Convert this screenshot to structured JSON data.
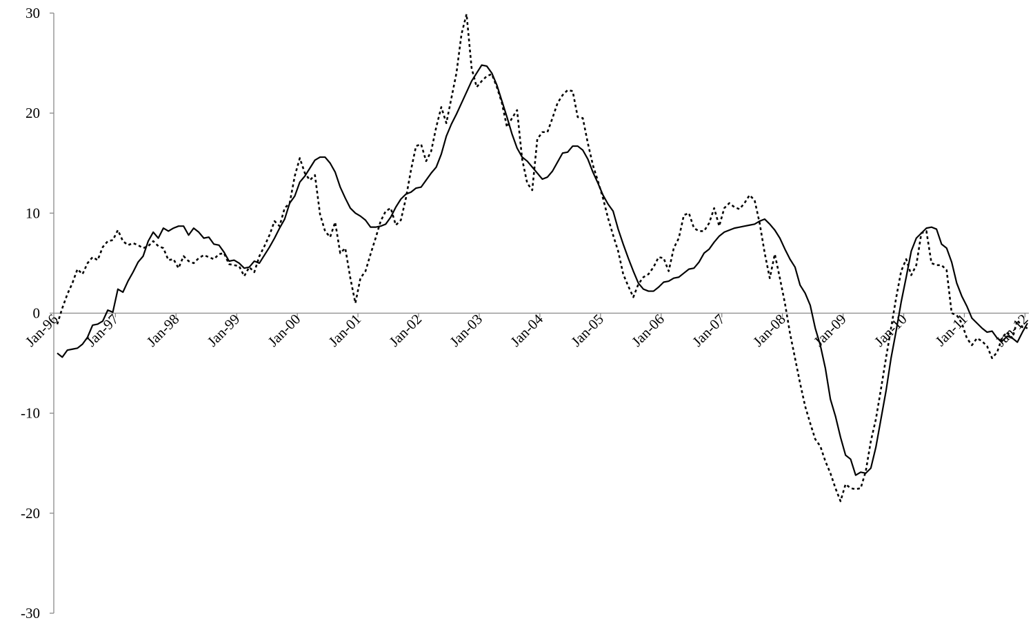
{
  "chart_data": {
    "type": "line",
    "categories": [
      "Jan-96",
      null,
      null,
      null,
      null,
      null,
      null,
      null,
      null,
      null,
      null,
      null,
      "Jan-97",
      null,
      null,
      null,
      null,
      null,
      null,
      null,
      null,
      null,
      null,
      null,
      "Jan-98",
      null,
      null,
      null,
      null,
      null,
      null,
      null,
      null,
      null,
      null,
      null,
      "Jan-99",
      null,
      null,
      null,
      null,
      null,
      null,
      null,
      null,
      null,
      null,
      null,
      "Jan-00",
      null,
      null,
      null,
      null,
      null,
      null,
      null,
      null,
      null,
      null,
      null,
      "Jan-01",
      null,
      null,
      null,
      null,
      null,
      null,
      null,
      null,
      null,
      null,
      null,
      "Jan-02",
      null,
      null,
      null,
      null,
      null,
      null,
      null,
      null,
      null,
      null,
      null,
      "Jan-03",
      null,
      null,
      null,
      null,
      null,
      null,
      null,
      null,
      null,
      null,
      null,
      "Jan-04",
      null,
      null,
      null,
      null,
      null,
      null,
      null,
      null,
      null,
      null,
      null,
      "Jan-05",
      null,
      null,
      null,
      null,
      null,
      null,
      null,
      null,
      null,
      null,
      null,
      "Jan-06",
      null,
      null,
      null,
      null,
      null,
      null,
      null,
      null,
      null,
      null,
      null,
      "Jan-07",
      null,
      null,
      null,
      null,
      null,
      null,
      null,
      null,
      null,
      null,
      null,
      "Jan-08",
      null,
      null,
      null,
      null,
      null,
      null,
      null,
      null,
      null,
      null,
      null,
      "Jan-09",
      null,
      null,
      null,
      null,
      null,
      null,
      null,
      null,
      null,
      null,
      null,
      "Jan-10",
      null,
      null,
      null,
      null,
      null,
      null,
      null,
      null,
      null,
      null,
      null,
      "Jan-11",
      null,
      null,
      null,
      null,
      null,
      null,
      null,
      null,
      null,
      null,
      null,
      "Jan-12"
    ],
    "series": [
      {
        "color": "#000000",
        "style": "solid",
        "values": [
          -4.0,
          -4.4,
          -3.7,
          -3.6,
          -3.5,
          -3.1,
          -2.4,
          -1.2,
          -1.1,
          -0.8,
          0.3,
          0.1,
          2.4,
          2.1,
          3.2,
          4.1,
          5.1,
          5.7,
          7.2,
          8.1,
          7.5,
          8.5,
          8.2,
          8.5,
          8.7,
          8.7,
          7.8,
          8.5,
          8.1,
          7.5,
          7.6,
          6.9,
          6.8,
          6.1,
          5.2,
          5.3,
          5.0,
          4.5,
          4.6,
          5.2,
          5.0,
          5.8,
          6.6,
          7.5,
          8.5,
          9.4,
          11.0,
          11.7,
          13.1,
          13.7,
          14.5,
          15.3,
          15.6,
          15.6,
          15.0,
          14.1,
          12.6,
          11.5,
          10.5,
          10.0,
          9.7,
          9.3,
          8.6,
          8.6,
          8.7,
          8.9,
          9.6,
          10.6,
          11.4,
          11.9,
          12.1,
          12.5,
          12.6,
          13.3,
          14.0,
          14.6,
          15.9,
          17.7,
          18.9,
          19.9,
          21.0,
          22.1,
          23.2,
          24.0,
          24.8,
          24.7,
          24.0,
          22.8,
          21.2,
          19.6,
          17.9,
          16.5,
          15.6,
          15.2,
          14.6,
          14.0,
          13.4,
          13.6,
          14.2,
          15.1,
          16.0,
          16.1,
          16.7,
          16.7,
          16.3,
          15.4,
          14.1,
          13.0,
          11.8,
          10.9,
          10.2,
          8.4,
          6.9,
          5.5,
          4.2,
          3.0,
          2.4,
          2.2,
          2.2,
          2.6,
          3.1,
          3.2,
          3.5,
          3.6,
          4.0,
          4.4,
          4.5,
          5.1,
          6.0,
          6.4,
          7.1,
          7.7,
          8.1,
          8.3,
          8.5,
          8.6,
          8.7,
          8.8,
          8.9,
          9.2,
          9.4,
          8.9,
          8.3,
          7.5,
          6.4,
          5.4,
          4.6,
          2.8,
          2.0,
          0.8,
          -1.5,
          -3.2,
          -5.5,
          -8.6,
          -10.3,
          -12.4,
          -14.2,
          -14.6,
          -16.2,
          -15.9,
          -16.0,
          -15.5,
          -13.4,
          -10.6,
          -7.8,
          -4.5,
          -1.8,
          1.1,
          3.6,
          6.2,
          7.5,
          8.0,
          8.5,
          8.6,
          8.4,
          6.9,
          6.5,
          5.1,
          3.0,
          1.7,
          0.7,
          -0.5,
          -1.0,
          -1.5,
          -1.9,
          -1.8,
          -2.5,
          -2.8,
          -2.3,
          -2.5,
          -2.9,
          -1.9,
          -1.0
        ]
      },
      {
        "color": "#000000",
        "style": "dotted",
        "values": [
          -1.1,
          0.5,
          1.9,
          3.0,
          4.4,
          3.9,
          5.0,
          5.6,
          5.3,
          6.6,
          7.2,
          7.3,
          8.3,
          7.2,
          6.8,
          7.0,
          6.8,
          6.5,
          6.7,
          7.2,
          6.7,
          6.5,
          5.3,
          5.4,
          4.5,
          5.7,
          5.2,
          5.0,
          5.5,
          5.8,
          5.6,
          5.4,
          5.9,
          6.0,
          4.9,
          4.8,
          4.7,
          3.7,
          4.6,
          4.1,
          5.7,
          6.7,
          7.8,
          9.2,
          8.7,
          10.5,
          11.0,
          13.7,
          15.5,
          14.0,
          13.3,
          13.8,
          9.9,
          8.2,
          7.6,
          9.1,
          6.0,
          6.5,
          3.5,
          1.0,
          3.5,
          4.2,
          5.9,
          7.5,
          9.2,
          10.2,
          10.5,
          8.8,
          9.3,
          11.5,
          14.3,
          16.7,
          16.9,
          15.2,
          16.2,
          18.6,
          20.6,
          19.0,
          21.5,
          24.0,
          27.9,
          29.9,
          24.5,
          22.6,
          23.2,
          23.7,
          23.9,
          22.6,
          21.0,
          18.6,
          19.5,
          20.3,
          15.4,
          13.0,
          12.3,
          17.4,
          18.1,
          18.1,
          19.5,
          21.0,
          21.8,
          22.3,
          22.2,
          19.6,
          19.5,
          17.0,
          14.8,
          13.2,
          11.5,
          9.5,
          7.8,
          6.2,
          3.9,
          2.7,
          1.6,
          2.9,
          3.6,
          3.9,
          4.6,
          5.6,
          5.5,
          4.2,
          6.5,
          7.5,
          9.8,
          10.0,
          8.5,
          8.2,
          8.2,
          9.0,
          10.5,
          8.7,
          10.5,
          11.0,
          10.6,
          10.4,
          11.0,
          11.8,
          11.3,
          9.0,
          6.0,
          3.5,
          5.9,
          3.5,
          1.0,
          -2.0,
          -4.5,
          -7.0,
          -9.3,
          -11.0,
          -12.6,
          -13.3,
          -14.8,
          -16.0,
          -17.5,
          -18.8,
          -17.1,
          -17.5,
          -17.6,
          -17.5,
          -15.8,
          -12.8,
          -10.6,
          -7.6,
          -4.5,
          -1.5,
          1.5,
          4.2,
          5.4,
          3.8,
          4.8,
          8.0,
          8.2,
          5.0,
          4.8,
          4.8,
          4.3,
          0.0,
          -0.2,
          -1.0,
          -2.5,
          -3.2,
          -2.5,
          -2.8,
          -3.3,
          -4.5,
          -3.9,
          -2.4,
          -1.9,
          -2.5,
          -0.7,
          -1.4,
          -1.5
        ]
      }
    ],
    "ylim": [
      -30,
      30
    ],
    "yticks": [
      -30,
      -20,
      -10,
      0,
      10,
      20,
      30
    ],
    "grid": false
  }
}
